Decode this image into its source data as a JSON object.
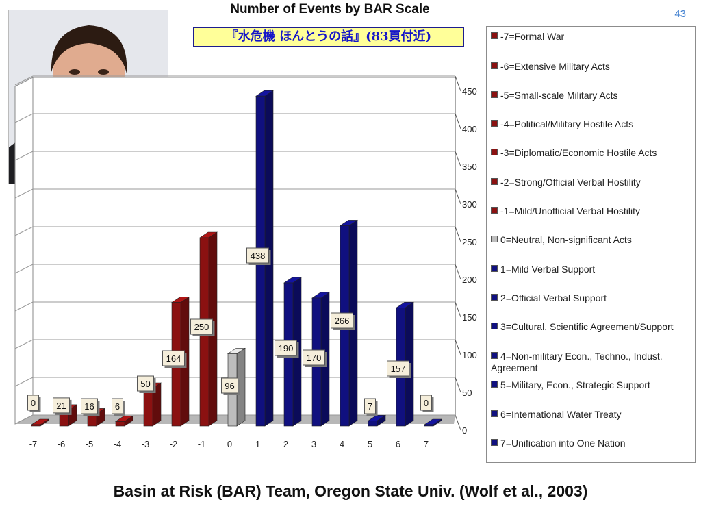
{
  "slide": {
    "page_number": "43",
    "subtitle": "『水危機 ほんとうの話』(83頁付近)",
    "footer": "Basin at Risk (BAR) Team, Oregon State Univ. (Wolf et al., 2003)"
  },
  "photo": {
    "icon": "portrait-photo-icon"
  },
  "colors": {
    "conflict": "#8b1111",
    "neutral": "#bdbdbd",
    "cooperation": "#10107f"
  },
  "chart_data": {
    "type": "bar",
    "title": "Number of Events by BAR Scale",
    "xlabel": "",
    "ylabel": "",
    "ylim": [
      0,
      450
    ],
    "yticks": [
      0,
      50,
      100,
      150,
      200,
      250,
      300,
      350,
      400,
      450
    ],
    "grid": true,
    "legend_position": "right",
    "categories": [
      "-7",
      "-6",
      "-5",
      "-4",
      "-3",
      "-2",
      "-1",
      "0",
      "1",
      "2",
      "3",
      "4",
      "5",
      "6",
      "7"
    ],
    "values": [
      0,
      21,
      16,
      6,
      50,
      164,
      250,
      96,
      438,
      190,
      170,
      266,
      7,
      157,
      0
    ],
    "data_labels": [
      "0",
      "21",
      "16",
      "6",
      "50",
      "164",
      "250",
      "96",
      "438",
      "190",
      "170",
      "266",
      "7",
      "157",
      "0"
    ],
    "legend": [
      "-7=Formal War",
      "-6=Extensive Military Acts",
      "-5=Small-scale Military Acts",
      "-4=Political/Military Hostile Acts",
      "-3=Diplomatic/Economic Hostile Acts",
      "-2=Strong/Official Verbal Hostility",
      "-1=Mild/Unofficial Verbal Hostility",
      "0=Neutral, Non-significant Acts",
      "1=Mild Verbal Support",
      "2=Official Verbal Support",
      "3=Cultural, Scientific Agreement/Support",
      "4=Non-military Econ., Techno., Indust. Agreement",
      "5=Military, Econ., Strategic Support",
      "6=International Water Treaty",
      "7=Unification into One Nation"
    ]
  }
}
